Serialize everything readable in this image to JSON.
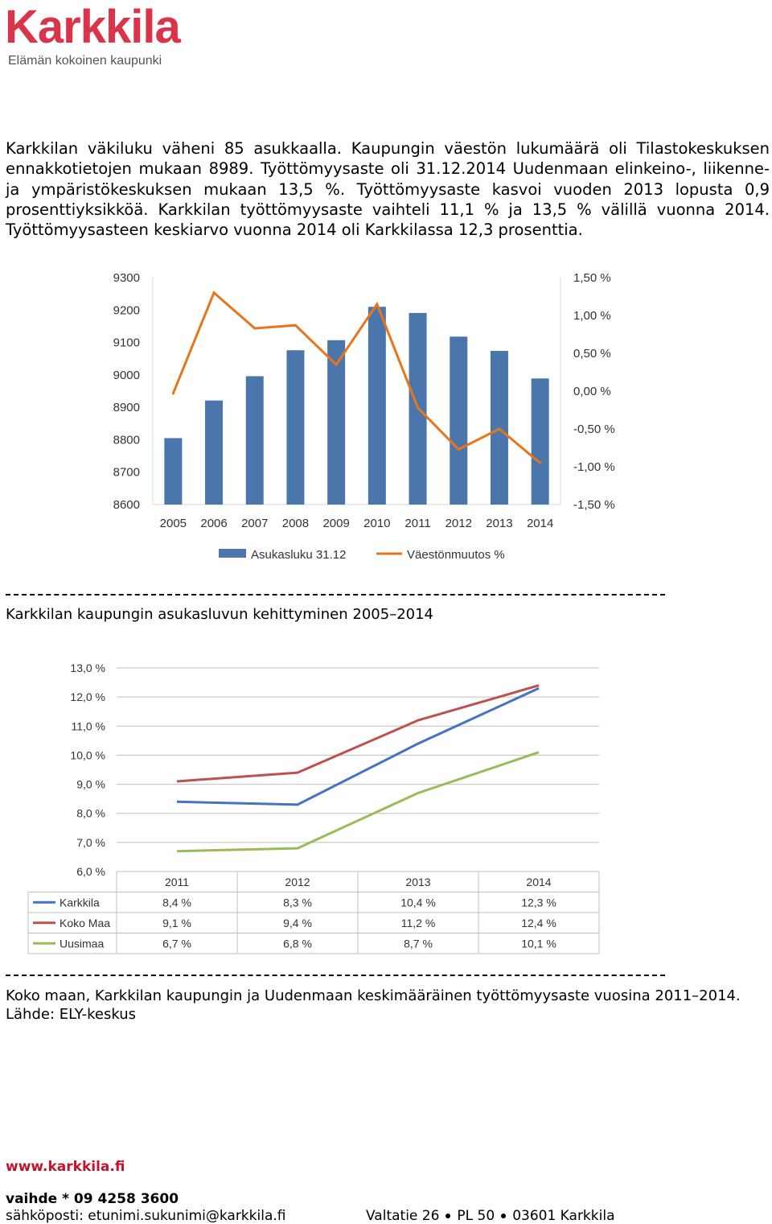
{
  "logo": {
    "name": "Karkkila",
    "tagline": "Elämän kokoinen kaupunki"
  },
  "intro_text": "Karkkilan väkiluku väheni 85 asukkaalla. Kaupungin väestön lukumäärä oli Tilastokeskuksen ennakkotietojen mukaan 8989. Työttömyysaste oli 31.12.2014 Uudenmaan elinkeino-, liikenne- ja ympäristökeskuksen mukaan 13,5 %. Työttömyysaste kasvoi vuoden 2013 lopusta 0,9 prosenttiyksikköä. Karkkilan työttömyysaste vaihteli 11,1 % ja 13,5 % välillä vuonna 2014. Työttömyysasteen keskiarvo vuonna 2014 oli Karkkilassa 12,3 prosenttia.",
  "chart_data": [
    {
      "type": "bar",
      "categories": [
        "2005",
        "2006",
        "2007",
        "2008",
        "2009",
        "2010",
        "2011",
        "2012",
        "2013",
        "2014"
      ],
      "series": [
        {
          "name": "Asukasluku 31.12",
          "type": "bar",
          "axis": "left",
          "color": "#4a76ab",
          "values": [
            8805,
            8921,
            8996,
            9076,
            9107,
            9210,
            9191,
            9118,
            9074,
            8989
          ]
        },
        {
          "name": "Väestönmuutos %",
          "type": "line",
          "axis": "right",
          "color": "#e8751a",
          "values": [
            -0.03,
            1.3,
            0.83,
            0.87,
            0.35,
            1.15,
            -0.22,
            -0.77,
            -0.5,
            -0.95
          ]
        }
      ],
      "ylim": [
        8600,
        9300
      ],
      "y_ticks": [
        "8600",
        "8700",
        "8800",
        "8900",
        "9000",
        "9100",
        "9200",
        "9300"
      ],
      "y2lim": [
        -1.5,
        1.5
      ],
      "y2_ticks": [
        "-1,50 %",
        "-1,00 %",
        "-0,50 %",
        "0,00 %",
        "0,50 %",
        "1,00 %",
        "1,50 %"
      ],
      "grid": false,
      "legend_position": "bottom"
    },
    {
      "type": "line",
      "categories": [
        "2011",
        "2012",
        "2013",
        "2014"
      ],
      "series": [
        {
          "name": "Karkkila",
          "color": "#4472c4",
          "values": [
            8.4,
            8.3,
            10.4,
            12.3
          ],
          "labels": [
            "8,4 %",
            "8,3 %",
            "10,4 %",
            "12,3 %"
          ]
        },
        {
          "name": "Koko Maa",
          "color": "#c0504d",
          "values": [
            9.1,
            9.4,
            11.2,
            12.4
          ],
          "labels": [
            "9,1 %",
            "9,4 %",
            "11,2 %",
            "12,4 %"
          ]
        },
        {
          "name": "Uusimaa",
          "color": "#9bbb59",
          "values": [
            6.7,
            6.8,
            8.7,
            10.1
          ],
          "labels": [
            "6,7 %",
            "6,8 %",
            "8,7 %",
            "10,1 %"
          ]
        }
      ],
      "ylim": [
        6,
        13
      ],
      "y_ticks": [
        "6,0 %",
        "7,0 %",
        "8,0 %",
        "9,0 %",
        "10,0 %",
        "11,0 %",
        "12,0 %",
        "13,0 %"
      ],
      "grid": true,
      "legend_position": "data-table-below"
    }
  ],
  "caption1": "Karkkilan kaupungin asukasluvun kehittyminen 2005–2014",
  "caption2": "Koko maan, Karkkilan kaupungin ja Uudenmaan keskimääräinen työttömyysaste vuosina 2011–2014. Lähde: ELY-keskus",
  "footer": {
    "website": "www.karkkila.fi",
    "phone": "vaihde * 09 4258 3600",
    "email": "sähköposti: etunimi.sukunimi@karkkila.fi",
    "street": "Valtatie 26",
    "pobox": "PL 50",
    "postal": "03601 Karkkila"
  }
}
